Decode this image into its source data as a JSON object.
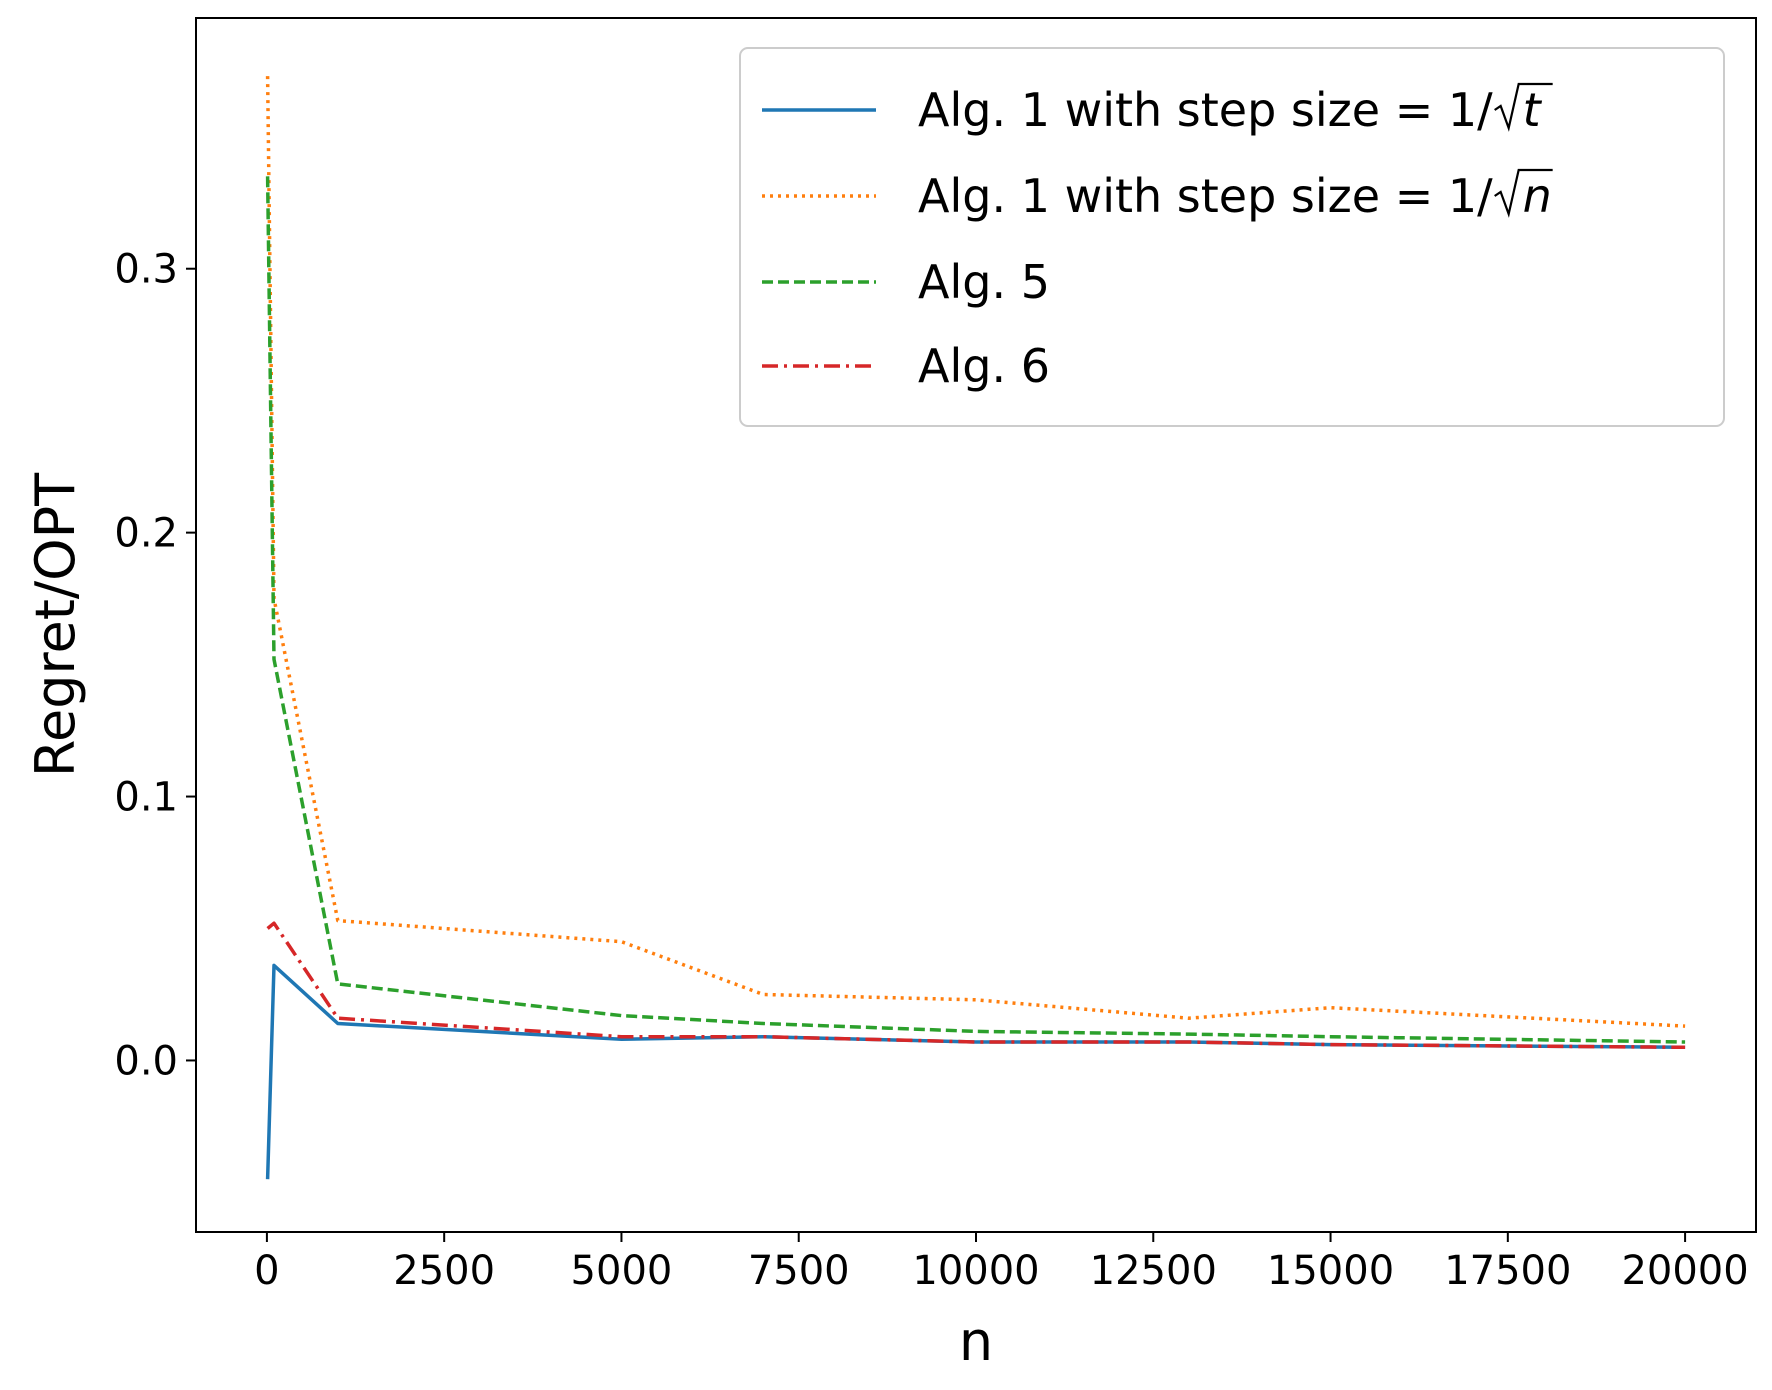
{
  "chart_data": {
    "type": "line",
    "title": "",
    "xlabel": "n",
    "ylabel": "Regret/OPT",
    "xlim": [
      -1000,
      21000
    ],
    "ylim": [
      -0.065,
      0.395
    ],
    "xticks": [
      0,
      2500,
      5000,
      7500,
      10000,
      12500,
      15000,
      17500,
      20000
    ],
    "xtick_labels": [
      "0",
      "2500",
      "5000",
      "7500",
      "10000",
      "12500",
      "15000",
      "17500",
      "20000"
    ],
    "yticks": [
      0.0,
      0.1,
      0.2,
      0.3
    ],
    "ytick_labels": [
      "0.0",
      "0.1",
      "0.2",
      "0.3"
    ],
    "grid": false,
    "legend_position": "top-right",
    "x": [
      10,
      100,
      1000,
      5000,
      7000,
      10000,
      13000,
      15000,
      20000
    ],
    "series": [
      {
        "name": "Alg. 1 with step size = 1/√t",
        "name_parts": {
          "prefix": "Alg. 1 with step size = 1/",
          "radicand": "t"
        },
        "color": "#1f77b4",
        "style": "solid",
        "values": [
          -0.045,
          0.036,
          0.014,
          0.008,
          0.009,
          0.007,
          0.007,
          0.006,
          0.005
        ]
      },
      {
        "name": "Alg. 1 with step size = 1/√n",
        "name_parts": {
          "prefix": "Alg. 1 with step size = 1/",
          "radicand": "n"
        },
        "color": "#ff7f0e",
        "style": "dotted",
        "values": [
          0.373,
          0.175,
          0.053,
          0.045,
          0.025,
          0.023,
          0.016,
          0.02,
          0.013
        ]
      },
      {
        "name": "Alg. 5",
        "color": "#2ca02c",
        "style": "dashed",
        "values": [
          0.335,
          0.152,
          0.029,
          0.017,
          0.014,
          0.011,
          0.01,
          0.009,
          0.007
        ]
      },
      {
        "name": "Alg. 6",
        "color": "#d62728",
        "style": "dashdot",
        "values": [
          0.05,
          0.052,
          0.016,
          0.009,
          0.009,
          0.007,
          0.007,
          0.006,
          0.005
        ]
      }
    ]
  }
}
